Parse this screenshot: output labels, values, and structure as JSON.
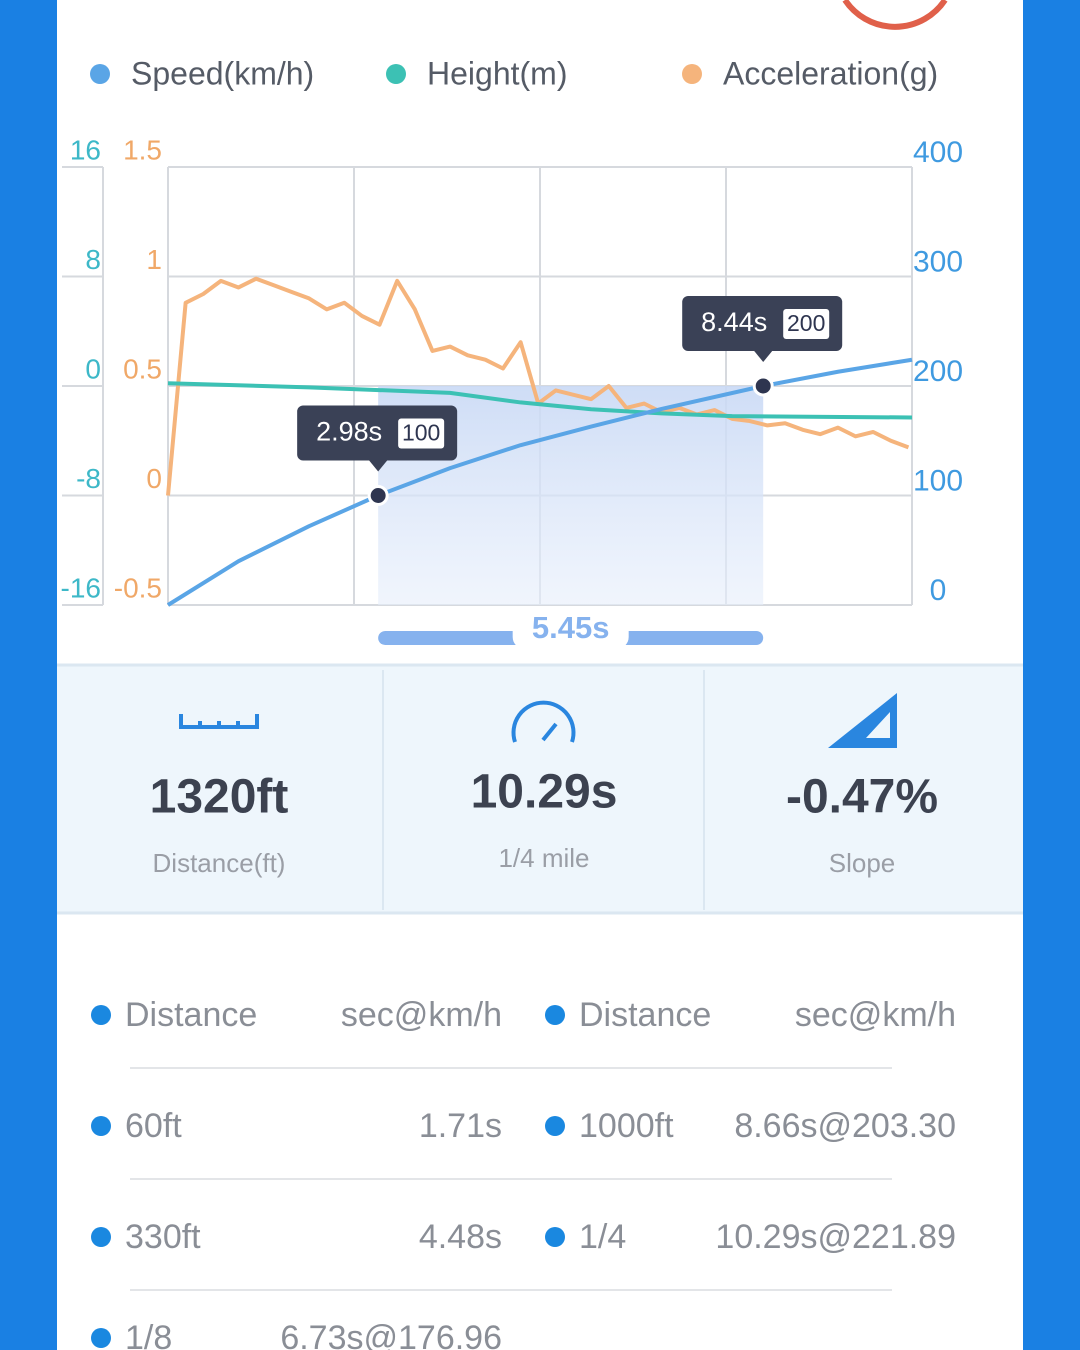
{
  "chart_data": {
    "type": "line",
    "series": [
      {
        "name": "Speed(km/h)",
        "color": "#5aa5e6",
        "axis": "y2",
        "x": [
          0,
          1,
          2,
          2.98,
          4,
          5,
          6,
          7,
          8.44,
          9.5,
          10.55
        ],
        "values": [
          0,
          40,
          72,
          100,
          125,
          146,
          163,
          179,
          200,
          213,
          224
        ]
      },
      {
        "name": "Height(m)",
        "color": "#3cc1b4",
        "x": [
          0,
          2,
          4,
          5,
          6,
          7,
          8,
          10.55
        ],
        "values": [
          0.2,
          -0.1,
          -0.5,
          -1.2,
          -1.7,
          -2,
          -2.2,
          -2.3
        ]
      },
      {
        "name": "Acceleration(g)",
        "color": "#f5b47c",
        "axis": "y3",
        "x": [
          0,
          0.25,
          0.5,
          0.75,
          1,
          1.25,
          1.5,
          1.75,
          2,
          2.25,
          2.5,
          2.75,
          3,
          3.25,
          3.5,
          3.75,
          4,
          4.25,
          4.5,
          4.75,
          5,
          5.25,
          5.5,
          5.75,
          6,
          6.25,
          6.5,
          6.75,
          7,
          7.25,
          7.5,
          7.75,
          8,
          8.25,
          8.5,
          8.75,
          9,
          9.25,
          9.5,
          9.75,
          10,
          10.25,
          10.5
        ],
        "values": [
          0,
          0.88,
          0.92,
          0.98,
          0.95,
          0.99,
          0.96,
          0.93,
          0.9,
          0.85,
          0.88,
          0.82,
          0.78,
          0.98,
          0.85,
          0.66,
          0.68,
          0.64,
          0.62,
          0.58,
          0.7,
          0.42,
          0.48,
          0.46,
          0.44,
          0.5,
          0.4,
          0.42,
          0.38,
          0.4,
          0.37,
          0.39,
          0.35,
          0.34,
          0.32,
          0.33,
          0.3,
          0.28,
          0.31,
          0.27,
          0.29,
          0.25,
          0.22
        ]
      }
    ],
    "xlim": [
      0,
      10.55
    ],
    "ylim": [
      -16,
      16
    ],
    "yticks": [
      -16,
      -8,
      0,
      8,
      16
    ],
    "y2lim": [
      0,
      400
    ],
    "y2ticks": [
      0,
      100,
      200,
      300,
      400
    ],
    "y3lim": [
      -0.5,
      1.5
    ],
    "y3ticks": [
      -0.5,
      0,
      0.5,
      1,
      1.5
    ],
    "grid": true,
    "markers": [
      {
        "time": {
          "value": 2.98,
          "label": "2.98s"
        },
        "speed": 100
      },
      {
        "time": {
          "value": 8.44,
          "label": "8.44s"
        },
        "speed": 200
      }
    ],
    "range": {
      "value": 5.45,
      "label": "5.45s"
    }
  },
  "stats": [
    {
      "value": "1320ft",
      "label": "Distance(ft)"
    },
    {
      "value": "10.29s",
      "label": "1/4 mile"
    },
    {
      "value": "-0.47%",
      "label": "Slope"
    }
  ],
  "table": {
    "header": [
      "Distance",
      "sec@km/h",
      "Distance",
      "sec@km/h"
    ],
    "rows": [
      [
        "60ft",
        "1.71s",
        "1000ft",
        "8.66s@203.30"
      ],
      [
        "330ft",
        "4.48s",
        "1/4",
        "10.29s@221.89"
      ],
      [
        "1/8",
        "6.73s@176.96"
      ]
    ]
  }
}
